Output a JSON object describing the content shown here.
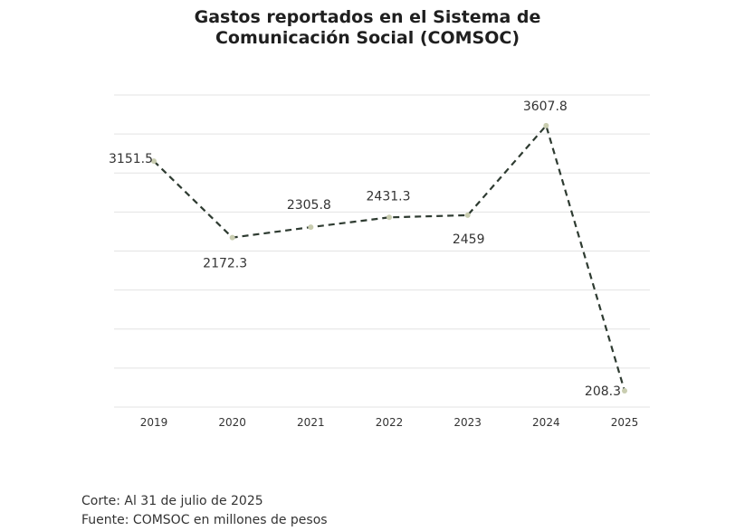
{
  "chart_data": {
    "type": "line",
    "title_lines": [
      "Gastos reportados en el Sistema de",
      "Comunicación Social (COMSOC)"
    ],
    "categories": [
      "2019",
      "2020",
      "2021",
      "2022",
      "2023",
      "2024",
      "2025"
    ],
    "series": [
      {
        "values": [
          3151.5,
          2172.3,
          2305.8,
          2431.3,
          2459,
          3607.8,
          208.3
        ]
      }
    ],
    "data_labels": [
      "3151.5",
      "2172.3",
      "2305.8",
      "2431.3",
      "2459",
      "3607.8",
      "208.3"
    ],
    "ylim": [
      0,
      4000
    ],
    "grid": true,
    "legend": "none",
    "line_style": "dashed",
    "colors": {
      "line": "#2e3b31",
      "marker": "#c9cdb0",
      "grid": "#e3e3e3"
    }
  },
  "footer": {
    "corte": "Corte: Al 31 de julio de 2025",
    "fuente": "Fuente: COMSOC en millones de pesos"
  }
}
